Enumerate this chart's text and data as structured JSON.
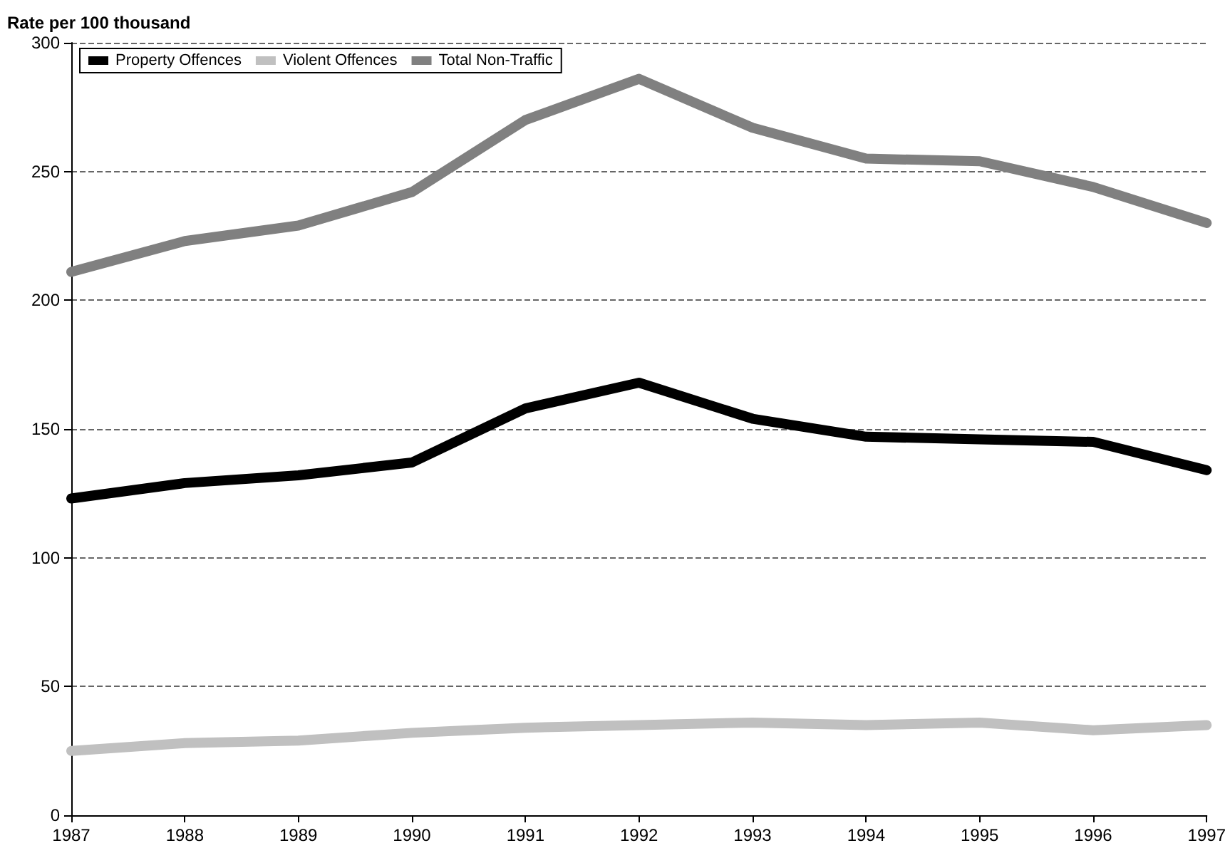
{
  "chart_data": {
    "type": "line",
    "ylabel": "Rate per 100 thousand",
    "categories": [
      "1987",
      "1988",
      "1989",
      "1990",
      "1991",
      "1992",
      "1993",
      "1994",
      "1995",
      "1996",
      "1997"
    ],
    "series": [
      {
        "name": "Property Offences",
        "color": "#000000",
        "values": [
          123,
          129,
          132,
          137,
          158,
          168,
          154,
          147,
          146,
          145,
          134
        ]
      },
      {
        "name": "Violent Offences",
        "color": "#c0c0c0",
        "values": [
          25,
          28,
          29,
          32,
          34,
          35,
          36,
          35,
          36,
          33,
          35
        ]
      },
      {
        "name": "Total Non-Traffic",
        "color": "#808080",
        "values": [
          211,
          223,
          229,
          242,
          270,
          286,
          267,
          255,
          254,
          244,
          230
        ]
      }
    ],
    "ylim": [
      0,
      300
    ],
    "yticks": [
      0,
      50,
      100,
      150,
      200,
      250,
      300
    ],
    "grid": "y",
    "legend": "top left"
  }
}
